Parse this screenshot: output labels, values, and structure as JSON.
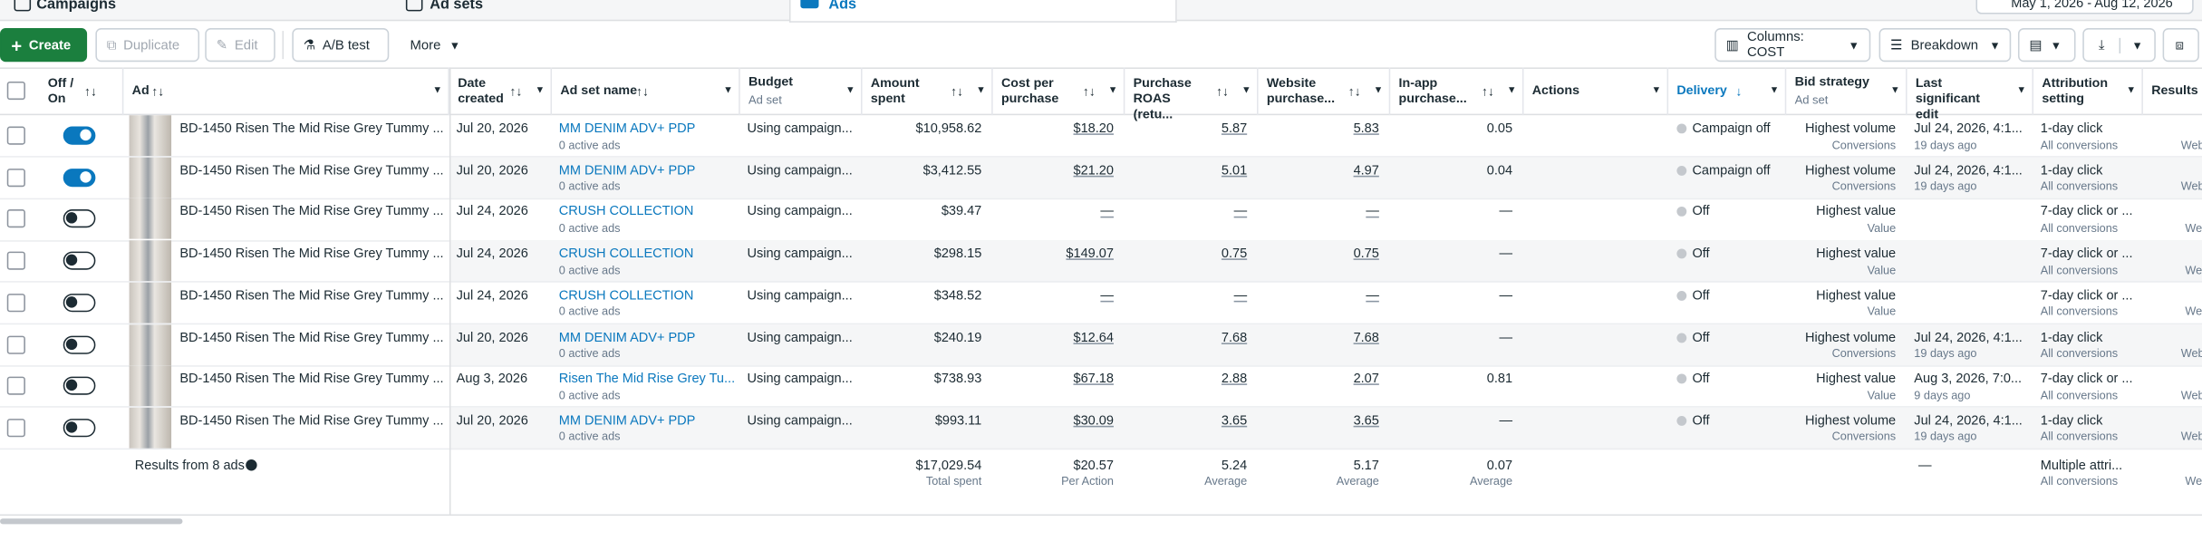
{
  "tabs": [
    "Campaigns",
    "Ad sets",
    "Ads"
  ],
  "date_range": "May 1, 2026 - Aug 12, 2026",
  "toolbar": {
    "create": "Create",
    "duplicate": "Duplicate",
    "edit": "Edit",
    "ab_test": "A/B test",
    "more": "More",
    "columns": "Columns: COST",
    "breakdown": "Breakdown"
  },
  "headers": [
    {
      "label": "Off / On"
    },
    {
      "label": "Ad"
    },
    {
      "label": "Date created"
    },
    {
      "label": "Ad set name"
    },
    {
      "label": "Budget",
      "sublabel": "Ad set"
    },
    {
      "label": "Amount spent"
    },
    {
      "label": "Cost per purchase"
    },
    {
      "label": "Purchase ROAS (retu..."
    },
    {
      "label": "Website purchase..."
    },
    {
      "label": "In-app purchase..."
    },
    {
      "label": "Actions"
    },
    {
      "label": "Delivery"
    },
    {
      "label": "Bid strategy",
      "sublabel": "Ad set"
    },
    {
      "label": "Last significant edit"
    },
    {
      "label": "Attribution setting"
    },
    {
      "label": "Results"
    }
  ],
  "rows": [
    {
      "toggle": true,
      "ad": "BD-1450 Risen The Mid Rise Grey Tummy ...",
      "date": "Jul 20, 2026",
      "ad_set": "MM DENIM ADV+ PDP",
      "ad_set_sub": "0 active ads",
      "budget": "Using campaign...",
      "amount_spent": "$10,958.62",
      "cost_per_purchase": "$18.20",
      "roas": "5.87",
      "website_purchase": "5.83",
      "in_app_purchase": "0.05",
      "delivery": "Campaign off",
      "bid_strategy": "Highest volume",
      "bid_strategy_sub": "Conversions",
      "last_edit": "Jul 24, 2026, 4:1...",
      "last_edit_sub": "19 days ago",
      "attribution": "1-day click",
      "attribution_sub": "All conversions",
      "results_sub": "Websi"
    },
    {
      "toggle": true,
      "ad": "BD-1450 Risen The Mid Rise Grey Tummy ...",
      "date": "Jul 20, 2026",
      "ad_set": "MM DENIM ADV+ PDP",
      "ad_set_sub": "0 active ads",
      "budget": "Using campaign...",
      "amount_spent": "$3,412.55",
      "cost_per_purchase": "$21.20",
      "roas": "5.01",
      "website_purchase": "4.97",
      "in_app_purchase": "0.04",
      "delivery": "Campaign off",
      "bid_strategy": "Highest volume",
      "bid_strategy_sub": "Conversions",
      "last_edit": "Jul 24, 2026, 4:1...",
      "last_edit_sub": "19 days ago",
      "attribution": "1-day click",
      "attribution_sub": "All conversions",
      "results_sub": "Websi"
    },
    {
      "toggle": false,
      "ad": "BD-1450 Risen The Mid Rise Grey Tummy ...",
      "date": "Jul 24, 2026",
      "ad_set": "CRUSH COLLECTION",
      "ad_set_sub": "0 active ads",
      "budget": "Using campaign...",
      "amount_spent": "$39.47",
      "cost_per_purchase": "—",
      "roas": "—",
      "website_purchase": "—",
      "in_app_purchase": "—",
      "delivery": "Off",
      "bid_strategy": "Highest value",
      "bid_strategy_sub": "Value",
      "attribution": "7-day click or ...",
      "attribution_sub": "All conversions",
      "results_sub": "Webs"
    },
    {
      "toggle": false,
      "ad": "BD-1450 Risen The Mid Rise Grey Tummy ...",
      "date": "Jul 24, 2026",
      "ad_set": "CRUSH COLLECTION",
      "ad_set_sub": "0 active ads",
      "budget": "Using campaign...",
      "amount_spent": "$298.15",
      "cost_per_purchase": "$149.07",
      "roas": "0.75",
      "website_purchase": "0.75",
      "in_app_purchase": "—",
      "delivery": "Off",
      "bid_strategy": "Highest value",
      "bid_strategy_sub": "Value",
      "attribution": "7-day click or ...",
      "attribution_sub": "All conversions",
      "results_sub": "Webs"
    },
    {
      "toggle": false,
      "ad": "BD-1450 Risen The Mid Rise Grey Tummy ...",
      "date": "Jul 24, 2026",
      "ad_set": "CRUSH COLLECTION",
      "ad_set_sub": "0 active ads",
      "budget": "Using campaign...",
      "amount_spent": "$348.52",
      "cost_per_purchase": "—",
      "roas": "—",
      "website_purchase": "—",
      "in_app_purchase": "—",
      "delivery": "Off",
      "bid_strategy": "Highest value",
      "bid_strategy_sub": "Value",
      "attribution": "7-day click or ...",
      "attribution_sub": "All conversions",
      "results_sub": "Webs"
    },
    {
      "toggle": false,
      "ad": "BD-1450 Risen The Mid Rise Grey Tummy ...",
      "date": "Jul 20, 2026",
      "ad_set": "MM DENIM ADV+ PDP",
      "ad_set_sub": "0 active ads",
      "budget": "Using campaign...",
      "amount_spent": "$240.19",
      "cost_per_purchase": "$12.64",
      "roas": "7.68",
      "website_purchase": "7.68",
      "in_app_purchase": "—",
      "delivery": "Off",
      "bid_strategy": "Highest volume",
      "bid_strategy_sub": "Conversions",
      "last_edit": "Jul 24, 2026, 4:1...",
      "last_edit_sub": "19 days ago",
      "attribution": "1-day click",
      "attribution_sub": "All conversions",
      "results_sub": "Websi"
    },
    {
      "toggle": false,
      "ad": "BD-1450 Risen The Mid Rise Grey Tummy ...",
      "date": "Aug 3, 2026",
      "ad_set": "Risen The Mid Rise Grey Tu...",
      "ad_set_sub": "0 active ads",
      "budget": "Using campaign...",
      "amount_spent": "$738.93",
      "cost_per_purchase": "$67.18",
      "roas": "2.88",
      "website_purchase": "2.07",
      "in_app_purchase": "0.81",
      "delivery": "Off",
      "bid_strategy": "Highest value",
      "bid_strategy_sub": "Value",
      "last_edit": "Aug 3, 2026, 7:0...",
      "last_edit_sub": "9 days ago",
      "attribution": "7-day click or ...",
      "attribution_sub": "All conversions",
      "results_sub": "Websi"
    },
    {
      "toggle": false,
      "ad": "BD-1450 Risen The Mid Rise Grey Tummy ...",
      "date": "Jul 20, 2026",
      "ad_set": "MM DENIM ADV+ PDP",
      "ad_set_sub": "0 active ads",
      "budget": "Using campaign...",
      "amount_spent": "$993.11",
      "cost_per_purchase": "$30.09",
      "roas": "3.65",
      "website_purchase": "3.65",
      "in_app_purchase": "—",
      "delivery": "Off",
      "bid_strategy": "Highest volume",
      "bid_strategy_sub": "Conversions",
      "last_edit": "Jul 24, 2026, 4:1...",
      "last_edit_sub": "19 days ago",
      "attribution": "1-day click",
      "attribution_sub": "All conversions",
      "results_sub": "Websi"
    }
  ],
  "footer": {
    "ad": {
      "text": "Results from 8 ads"
    },
    "amount_spent": {
      "text": "$17,029.54",
      "sub": "Total spent"
    },
    "cost_per_purchase": {
      "text": "$20.57",
      "sub": "Per Action"
    },
    "roas": {
      "text": "5.24",
      "sub": "Average"
    },
    "website_purchase": {
      "text": "5.17",
      "sub": "Average"
    },
    "in_app_purchase": {
      "text": "0.07",
      "sub": "Average"
    },
    "last_edit": {
      "text": "—"
    },
    "attribution": {
      "text": "Multiple attri...",
      "sub": "All conversions"
    },
    "results": {
      "sub": "Webs"
    }
  }
}
